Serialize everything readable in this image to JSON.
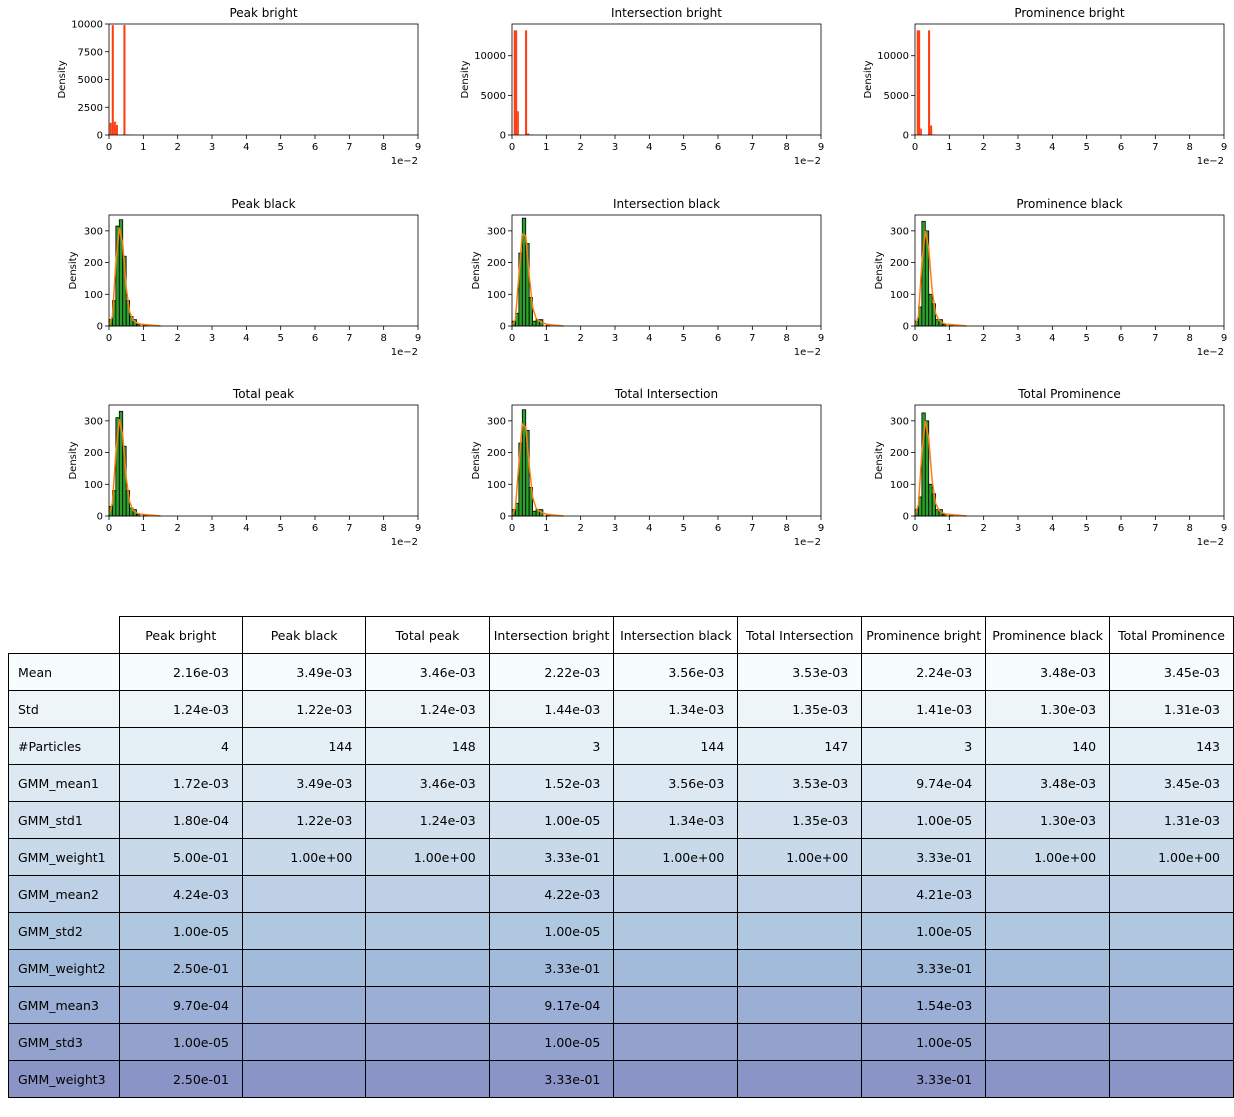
{
  "colors": {
    "bright": "#ff3b0f",
    "black": "#2ca02c",
    "kde": "#ff7f0e",
    "edge": "#000000"
  },
  "chart_data": [
    {
      "type": "bar",
      "title": "Peak bright",
      "ylabel": "Density",
      "xlim": [
        0,
        9
      ],
      "ylim": [
        0,
        10000
      ],
      "xticks": [
        "0",
        "1",
        "2",
        "3",
        "4",
        "5",
        "6",
        "7",
        "8",
        "9"
      ],
      "yticks": [
        "0",
        "2500",
        "5000",
        "7500",
        "10000"
      ],
      "offset_label": "1e−2",
      "fill": "bright",
      "kde": false,
      "bins": [
        [
          0.02,
          0.08,
          1100
        ],
        [
          0.08,
          0.14,
          9900
        ],
        [
          0.14,
          0.2,
          1200
        ],
        [
          0.2,
          0.26,
          900
        ],
        [
          0.42,
          0.48,
          9900
        ],
        [
          0.5,
          0.6,
          50
        ],
        [
          0.6,
          0.7,
          20
        ]
      ]
    },
    {
      "type": "bar",
      "title": "Intersection bright",
      "ylabel": "Density",
      "xlim": [
        0,
        9
      ],
      "ylim": [
        0,
        14000
      ],
      "xticks": [
        "0",
        "1",
        "2",
        "3",
        "4",
        "5",
        "6",
        "7",
        "8",
        "9"
      ],
      "yticks": [
        "0",
        "5000",
        "10000"
      ],
      "offset_label": "1e−2",
      "fill": "bright",
      "kde": false,
      "bins": [
        [
          0.05,
          0.1,
          13200
        ],
        [
          0.1,
          0.15,
          13200
        ],
        [
          0.15,
          0.2,
          3000
        ],
        [
          0.38,
          0.44,
          13200
        ],
        [
          0.44,
          0.5,
          200
        ],
        [
          0.5,
          0.6,
          60
        ]
      ]
    },
    {
      "type": "bar",
      "title": "Prominence bright",
      "ylabel": "Density",
      "xlim": [
        0,
        9
      ],
      "ylim": [
        0,
        14000
      ],
      "xticks": [
        "0",
        "1",
        "2",
        "3",
        "4",
        "5",
        "6",
        "7",
        "8",
        "9"
      ],
      "yticks": [
        "0",
        "5000",
        "10000"
      ],
      "offset_label": "1e−2",
      "fill": "bright",
      "kde": false,
      "bins": [
        [
          0.05,
          0.1,
          13200
        ],
        [
          0.1,
          0.15,
          13200
        ],
        [
          0.15,
          0.2,
          800
        ],
        [
          0.38,
          0.44,
          13200
        ],
        [
          0.44,
          0.5,
          1200
        ],
        [
          0.5,
          0.6,
          60
        ]
      ]
    },
    {
      "type": "bar",
      "title": "Peak black",
      "ylabel": "Density",
      "xlim": [
        0,
        9
      ],
      "ylim": [
        0,
        350
      ],
      "xticks": [
        "0",
        "1",
        "2",
        "3",
        "4",
        "5",
        "6",
        "7",
        "8",
        "9"
      ],
      "yticks": [
        "0",
        "100",
        "200",
        "300"
      ],
      "offset_label": "1e−2",
      "fill": "black",
      "kde": true,
      "bins": [
        [
          0,
          0.1,
          20
        ],
        [
          0.1,
          0.2,
          80
        ],
        [
          0.2,
          0.3,
          315
        ],
        [
          0.3,
          0.4,
          335
        ],
        [
          0.4,
          0.5,
          220
        ],
        [
          0.5,
          0.6,
          80
        ],
        [
          0.6,
          0.7,
          30
        ],
        [
          0.7,
          0.8,
          20
        ],
        [
          0.8,
          0.9,
          5
        ],
        [
          1.0,
          1.1,
          5
        ]
      ],
      "kde_points": [
        [
          0,
          2
        ],
        [
          0.1,
          30
        ],
        [
          0.2,
          200
        ],
        [
          0.3,
          310
        ],
        [
          0.4,
          260
        ],
        [
          0.5,
          120
        ],
        [
          0.6,
          45
        ],
        [
          0.7,
          18
        ],
        [
          0.8,
          10
        ],
        [
          0.9,
          6
        ],
        [
          1.0,
          5
        ],
        [
          1.2,
          3
        ],
        [
          1.5,
          0
        ]
      ]
    },
    {
      "type": "bar",
      "title": "Intersection black",
      "ylabel": "Density",
      "xlim": [
        0,
        9
      ],
      "ylim": [
        0,
        350
      ],
      "xticks": [
        "0",
        "1",
        "2",
        "3",
        "4",
        "5",
        "6",
        "7",
        "8",
        "9"
      ],
      "yticks": [
        "0",
        "100",
        "200",
        "300"
      ],
      "offset_label": "1e−2",
      "fill": "black",
      "kde": true,
      "bins": [
        [
          0,
          0.1,
          15
        ],
        [
          0.1,
          0.2,
          40
        ],
        [
          0.2,
          0.3,
          230
        ],
        [
          0.3,
          0.4,
          340
        ],
        [
          0.4,
          0.5,
          260
        ],
        [
          0.5,
          0.6,
          90
        ],
        [
          0.6,
          0.7,
          15
        ],
        [
          0.7,
          0.8,
          20
        ],
        [
          0.8,
          0.9,
          20
        ],
        [
          1.0,
          1.1,
          5
        ]
      ],
      "kde_points": [
        [
          0,
          2
        ],
        [
          0.1,
          20
        ],
        [
          0.2,
          160
        ],
        [
          0.3,
          290
        ],
        [
          0.4,
          285
        ],
        [
          0.5,
          160
        ],
        [
          0.6,
          60
        ],
        [
          0.7,
          25
        ],
        [
          0.8,
          15
        ],
        [
          0.9,
          10
        ],
        [
          1.0,
          6
        ],
        [
          1.2,
          3
        ],
        [
          1.5,
          0
        ]
      ]
    },
    {
      "type": "bar",
      "title": "Prominence black",
      "ylabel": "Density",
      "xlim": [
        0,
        9
      ],
      "ylim": [
        0,
        350
      ],
      "xticks": [
        "0",
        "1",
        "2",
        "3",
        "4",
        "5",
        "6",
        "7",
        "8",
        "9"
      ],
      "yticks": [
        "0",
        "100",
        "200",
        "300"
      ],
      "offset_label": "1e−2",
      "fill": "black",
      "kde": true,
      "bins": [
        [
          0,
          0.1,
          15
        ],
        [
          0.1,
          0.2,
          60
        ],
        [
          0.2,
          0.3,
          330
        ],
        [
          0.3,
          0.4,
          300
        ],
        [
          0.4,
          0.5,
          100
        ],
        [
          0.5,
          0.6,
          70
        ],
        [
          0.6,
          0.7,
          20
        ],
        [
          0.7,
          0.8,
          20
        ],
        [
          0.8,
          0.9,
          5
        ],
        [
          1.0,
          1.1,
          5
        ]
      ],
      "kde_points": [
        [
          0,
          2
        ],
        [
          0.1,
          30
        ],
        [
          0.2,
          200
        ],
        [
          0.3,
          300
        ],
        [
          0.4,
          245
        ],
        [
          0.5,
          110
        ],
        [
          0.6,
          40
        ],
        [
          0.7,
          18
        ],
        [
          0.8,
          10
        ],
        [
          0.9,
          6
        ],
        [
          1.0,
          5
        ],
        [
          1.2,
          3
        ],
        [
          1.5,
          0
        ]
      ]
    },
    {
      "type": "bar",
      "title": "Total peak",
      "ylabel": "Density",
      "xlim": [
        0,
        9
      ],
      "ylim": [
        0,
        350
      ],
      "xticks": [
        "0",
        "1",
        "2",
        "3",
        "4",
        "5",
        "6",
        "7",
        "8",
        "9"
      ],
      "yticks": [
        "0",
        "100",
        "200",
        "300"
      ],
      "offset_label": "1e−2",
      "fill": "black",
      "kde": true,
      "bins": [
        [
          0,
          0.1,
          30
        ],
        [
          0.1,
          0.2,
          80
        ],
        [
          0.2,
          0.3,
          310
        ],
        [
          0.3,
          0.4,
          330
        ],
        [
          0.4,
          0.5,
          220
        ],
        [
          0.5,
          0.6,
          80
        ],
        [
          0.6,
          0.7,
          25
        ],
        [
          0.7,
          0.8,
          20
        ],
        [
          0.8,
          0.9,
          5
        ],
        [
          1.0,
          1.1,
          5
        ]
      ],
      "kde_points": [
        [
          0,
          5
        ],
        [
          0.1,
          40
        ],
        [
          0.2,
          200
        ],
        [
          0.3,
          305
        ],
        [
          0.4,
          255
        ],
        [
          0.5,
          120
        ],
        [
          0.6,
          45
        ],
        [
          0.7,
          18
        ],
        [
          0.8,
          10
        ],
        [
          0.9,
          6
        ],
        [
          1.0,
          5
        ],
        [
          1.2,
          3
        ],
        [
          1.5,
          0
        ]
      ]
    },
    {
      "type": "bar",
      "title": "Total Intersection",
      "ylabel": "Density",
      "xlim": [
        0,
        9
      ],
      "ylim": [
        0,
        350
      ],
      "xticks": [
        "0",
        "1",
        "2",
        "3",
        "4",
        "5",
        "6",
        "7",
        "8",
        "9"
      ],
      "yticks": [
        "0",
        "100",
        "200",
        "300"
      ],
      "offset_label": "1e−2",
      "fill": "black",
      "kde": true,
      "bins": [
        [
          0,
          0.1,
          20
        ],
        [
          0.1,
          0.2,
          40
        ],
        [
          0.2,
          0.3,
          230
        ],
        [
          0.3,
          0.4,
          335
        ],
        [
          0.4,
          0.5,
          270
        ],
        [
          0.5,
          0.6,
          90
        ],
        [
          0.6,
          0.7,
          15
        ],
        [
          0.7,
          0.8,
          20
        ],
        [
          0.8,
          0.9,
          20
        ],
        [
          1.0,
          1.1,
          5
        ]
      ],
      "kde_points": [
        [
          0,
          3
        ],
        [
          0.1,
          25
        ],
        [
          0.2,
          165
        ],
        [
          0.3,
          290
        ],
        [
          0.4,
          280
        ],
        [
          0.5,
          160
        ],
        [
          0.6,
          60
        ],
        [
          0.7,
          25
        ],
        [
          0.8,
          15
        ],
        [
          0.9,
          10
        ],
        [
          1.0,
          6
        ],
        [
          1.2,
          3
        ],
        [
          1.5,
          0
        ]
      ]
    },
    {
      "type": "bar",
      "title": "Total Prominence",
      "ylabel": "Density",
      "xlim": [
        0,
        9
      ],
      "ylim": [
        0,
        350
      ],
      "xticks": [
        "0",
        "1",
        "2",
        "3",
        "4",
        "5",
        "6",
        "7",
        "8",
        "9"
      ],
      "yticks": [
        "0",
        "100",
        "200",
        "300"
      ],
      "offset_label": "1e−2",
      "fill": "black",
      "kde": true,
      "bins": [
        [
          0,
          0.1,
          20
        ],
        [
          0.1,
          0.2,
          60
        ],
        [
          0.2,
          0.3,
          325
        ],
        [
          0.3,
          0.4,
          300
        ],
        [
          0.4,
          0.5,
          100
        ],
        [
          0.5,
          0.6,
          70
        ],
        [
          0.6,
          0.7,
          20
        ],
        [
          0.7,
          0.8,
          20
        ],
        [
          0.8,
          0.9,
          5
        ],
        [
          1.0,
          1.1,
          5
        ]
      ],
      "kde_points": [
        [
          0,
          3
        ],
        [
          0.1,
          35
        ],
        [
          0.2,
          200
        ],
        [
          0.3,
          300
        ],
        [
          0.4,
          245
        ],
        [
          0.5,
          110
        ],
        [
          0.6,
          40
        ],
        [
          0.7,
          18
        ],
        [
          0.8,
          10
        ],
        [
          0.9,
          6
        ],
        [
          1.0,
          5
        ],
        [
          1.2,
          3
        ],
        [
          1.5,
          0
        ]
      ]
    }
  ],
  "table": {
    "columns": [
      "Peak bright",
      "Peak black",
      "Total peak",
      "Intersection bright",
      "Intersection black",
      "Total Intersection",
      "Prominence bright",
      "Prominence black",
      "Total Prominence"
    ],
    "rows": [
      {
        "label": "Mean",
        "color": "#f7fcfd",
        "values": [
          "2.16e-03",
          "3.49e-03",
          "3.46e-03",
          "2.22e-03",
          "3.56e-03",
          "3.53e-03",
          "2.24e-03",
          "3.48e-03",
          "3.45e-03"
        ]
      },
      {
        "label": "Std",
        "color": "#eef5f9",
        "values": [
          "1.24e-03",
          "1.22e-03",
          "1.24e-03",
          "1.44e-03",
          "1.34e-03",
          "1.35e-03",
          "1.41e-03",
          "1.30e-03",
          "1.31e-03"
        ]
      },
      {
        "label": "#Particles",
        "color": "#e5eff6",
        "values": [
          "4",
          "144",
          "148",
          "3",
          "144",
          "147",
          "3",
          "140",
          "143"
        ]
      },
      {
        "label": "GMM_mean1",
        "color": "#dde9f2",
        "values": [
          "1.72e-03",
          "3.49e-03",
          "3.46e-03",
          "1.52e-03",
          "3.56e-03",
          "3.53e-03",
          "9.74e-04",
          "3.48e-03",
          "3.45e-03"
        ]
      },
      {
        "label": "GMM_std1",
        "color": "#d3e1ee",
        "values": [
          "1.80e-04",
          "1.22e-03",
          "1.24e-03",
          "1.00e-05",
          "1.34e-03",
          "1.35e-03",
          "1.00e-05",
          "1.30e-03",
          "1.31e-03"
        ]
      },
      {
        "label": "GMM_weight1",
        "color": "#c8d9ea",
        "values": [
          "5.00e-01",
          "1.00e+00",
          "1.00e+00",
          "3.33e-01",
          "1.00e+00",
          "1.00e+00",
          "3.33e-01",
          "1.00e+00",
          "1.00e+00"
        ]
      },
      {
        "label": "GMM_mean2",
        "color": "#bdd0e6",
        "values": [
          "4.24e-03",
          "",
          "",
          "4.22e-03",
          "",
          "",
          "4.21e-03",
          "",
          ""
        ]
      },
      {
        "label": "GMM_std2",
        "color": "#b0c7e0",
        "values": [
          "1.00e-05",
          "",
          "",
          "1.00e-05",
          "",
          "",
          "1.00e-05",
          "",
          ""
        ]
      },
      {
        "label": "GMM_weight2",
        "color": "#a3bbda",
        "values": [
          "2.50e-01",
          "",
          "",
          "3.33e-01",
          "",
          "",
          "3.33e-01",
          "",
          ""
        ]
      },
      {
        "label": "GMM_mean3",
        "color": "#9aaed6",
        "values": [
          "9.70e-04",
          "",
          "",
          "9.17e-04",
          "",
          "",
          "1.54e-03",
          "",
          ""
        ]
      },
      {
        "label": "GMM_std3",
        "color": "#93a2cd",
        "values": [
          "1.00e-05",
          "",
          "",
          "1.00e-05",
          "",
          "",
          "1.00e-05",
          "",
          ""
        ]
      },
      {
        "label": "GMM_weight3",
        "color": "#8b94c6",
        "values": [
          "2.50e-01",
          "",
          "",
          "3.33e-01",
          "",
          "",
          "3.33e-01",
          "",
          ""
        ]
      }
    ]
  }
}
